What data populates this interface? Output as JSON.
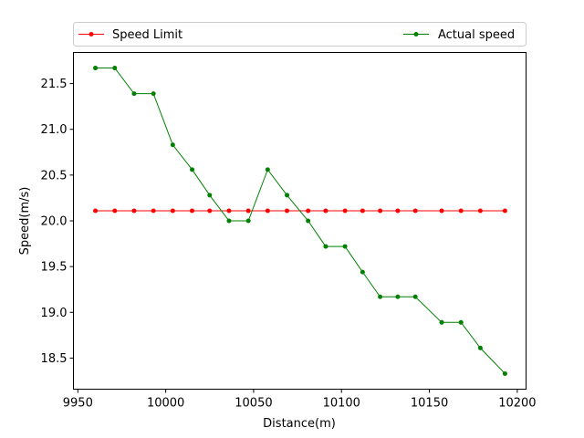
{
  "chart_data": {
    "type": "line",
    "xlabel": "Distance(m)",
    "ylabel": "Speed(m/s)",
    "xlim": [
      9947.5,
      10205
    ],
    "ylim": [
      18.16,
      21.84
    ],
    "xticks": [
      9950,
      10000,
      10050,
      10100,
      10150,
      10200
    ],
    "yticks": [
      18.5,
      19.0,
      19.5,
      20.0,
      20.5,
      21.0,
      21.5
    ],
    "xtick_labels": [
      "9950",
      "10000",
      "10050",
      "10100",
      "10150",
      "10200"
    ],
    "ytick_labels": [
      "18.5",
      "19.0",
      "19.5",
      "20.0",
      "20.5",
      "21.0",
      "21.5"
    ],
    "grid": false,
    "legend": {
      "placement": "top, above plot",
      "entries": [
        "Speed Limit",
        "Actual speed"
      ]
    },
    "series": [
      {
        "name": "Speed Limit",
        "color": "#ff0000",
        "x": [
          9960,
          9971,
          9982,
          9993,
          10004,
          10015,
          10025,
          10036,
          10047,
          10058,
          10069,
          10081,
          10091,
          10102,
          10112,
          10122,
          10132,
          10142,
          10157,
          10168,
          10179,
          10193
        ],
        "y": [
          20.11,
          20.11,
          20.11,
          20.11,
          20.11,
          20.11,
          20.11,
          20.11,
          20.11,
          20.11,
          20.11,
          20.11,
          20.11,
          20.11,
          20.11,
          20.11,
          20.11,
          20.11,
          20.11,
          20.11,
          20.11,
          20.11
        ]
      },
      {
        "name": "Actual speed",
        "color": "#008000",
        "x": [
          9960,
          9971,
          9982,
          9993,
          10004,
          10015,
          10025,
          10036,
          10047,
          10058,
          10069,
          10081,
          10091,
          10102,
          10112,
          10122,
          10132,
          10142,
          10157,
          10168,
          10179,
          10193
        ],
        "y": [
          21.67,
          21.67,
          21.39,
          21.39,
          20.83,
          20.56,
          20.28,
          20.0,
          20.0,
          20.56,
          20.28,
          20.0,
          19.72,
          19.72,
          19.44,
          19.17,
          19.17,
          19.17,
          18.89,
          18.89,
          18.61,
          18.33
        ]
      }
    ]
  }
}
